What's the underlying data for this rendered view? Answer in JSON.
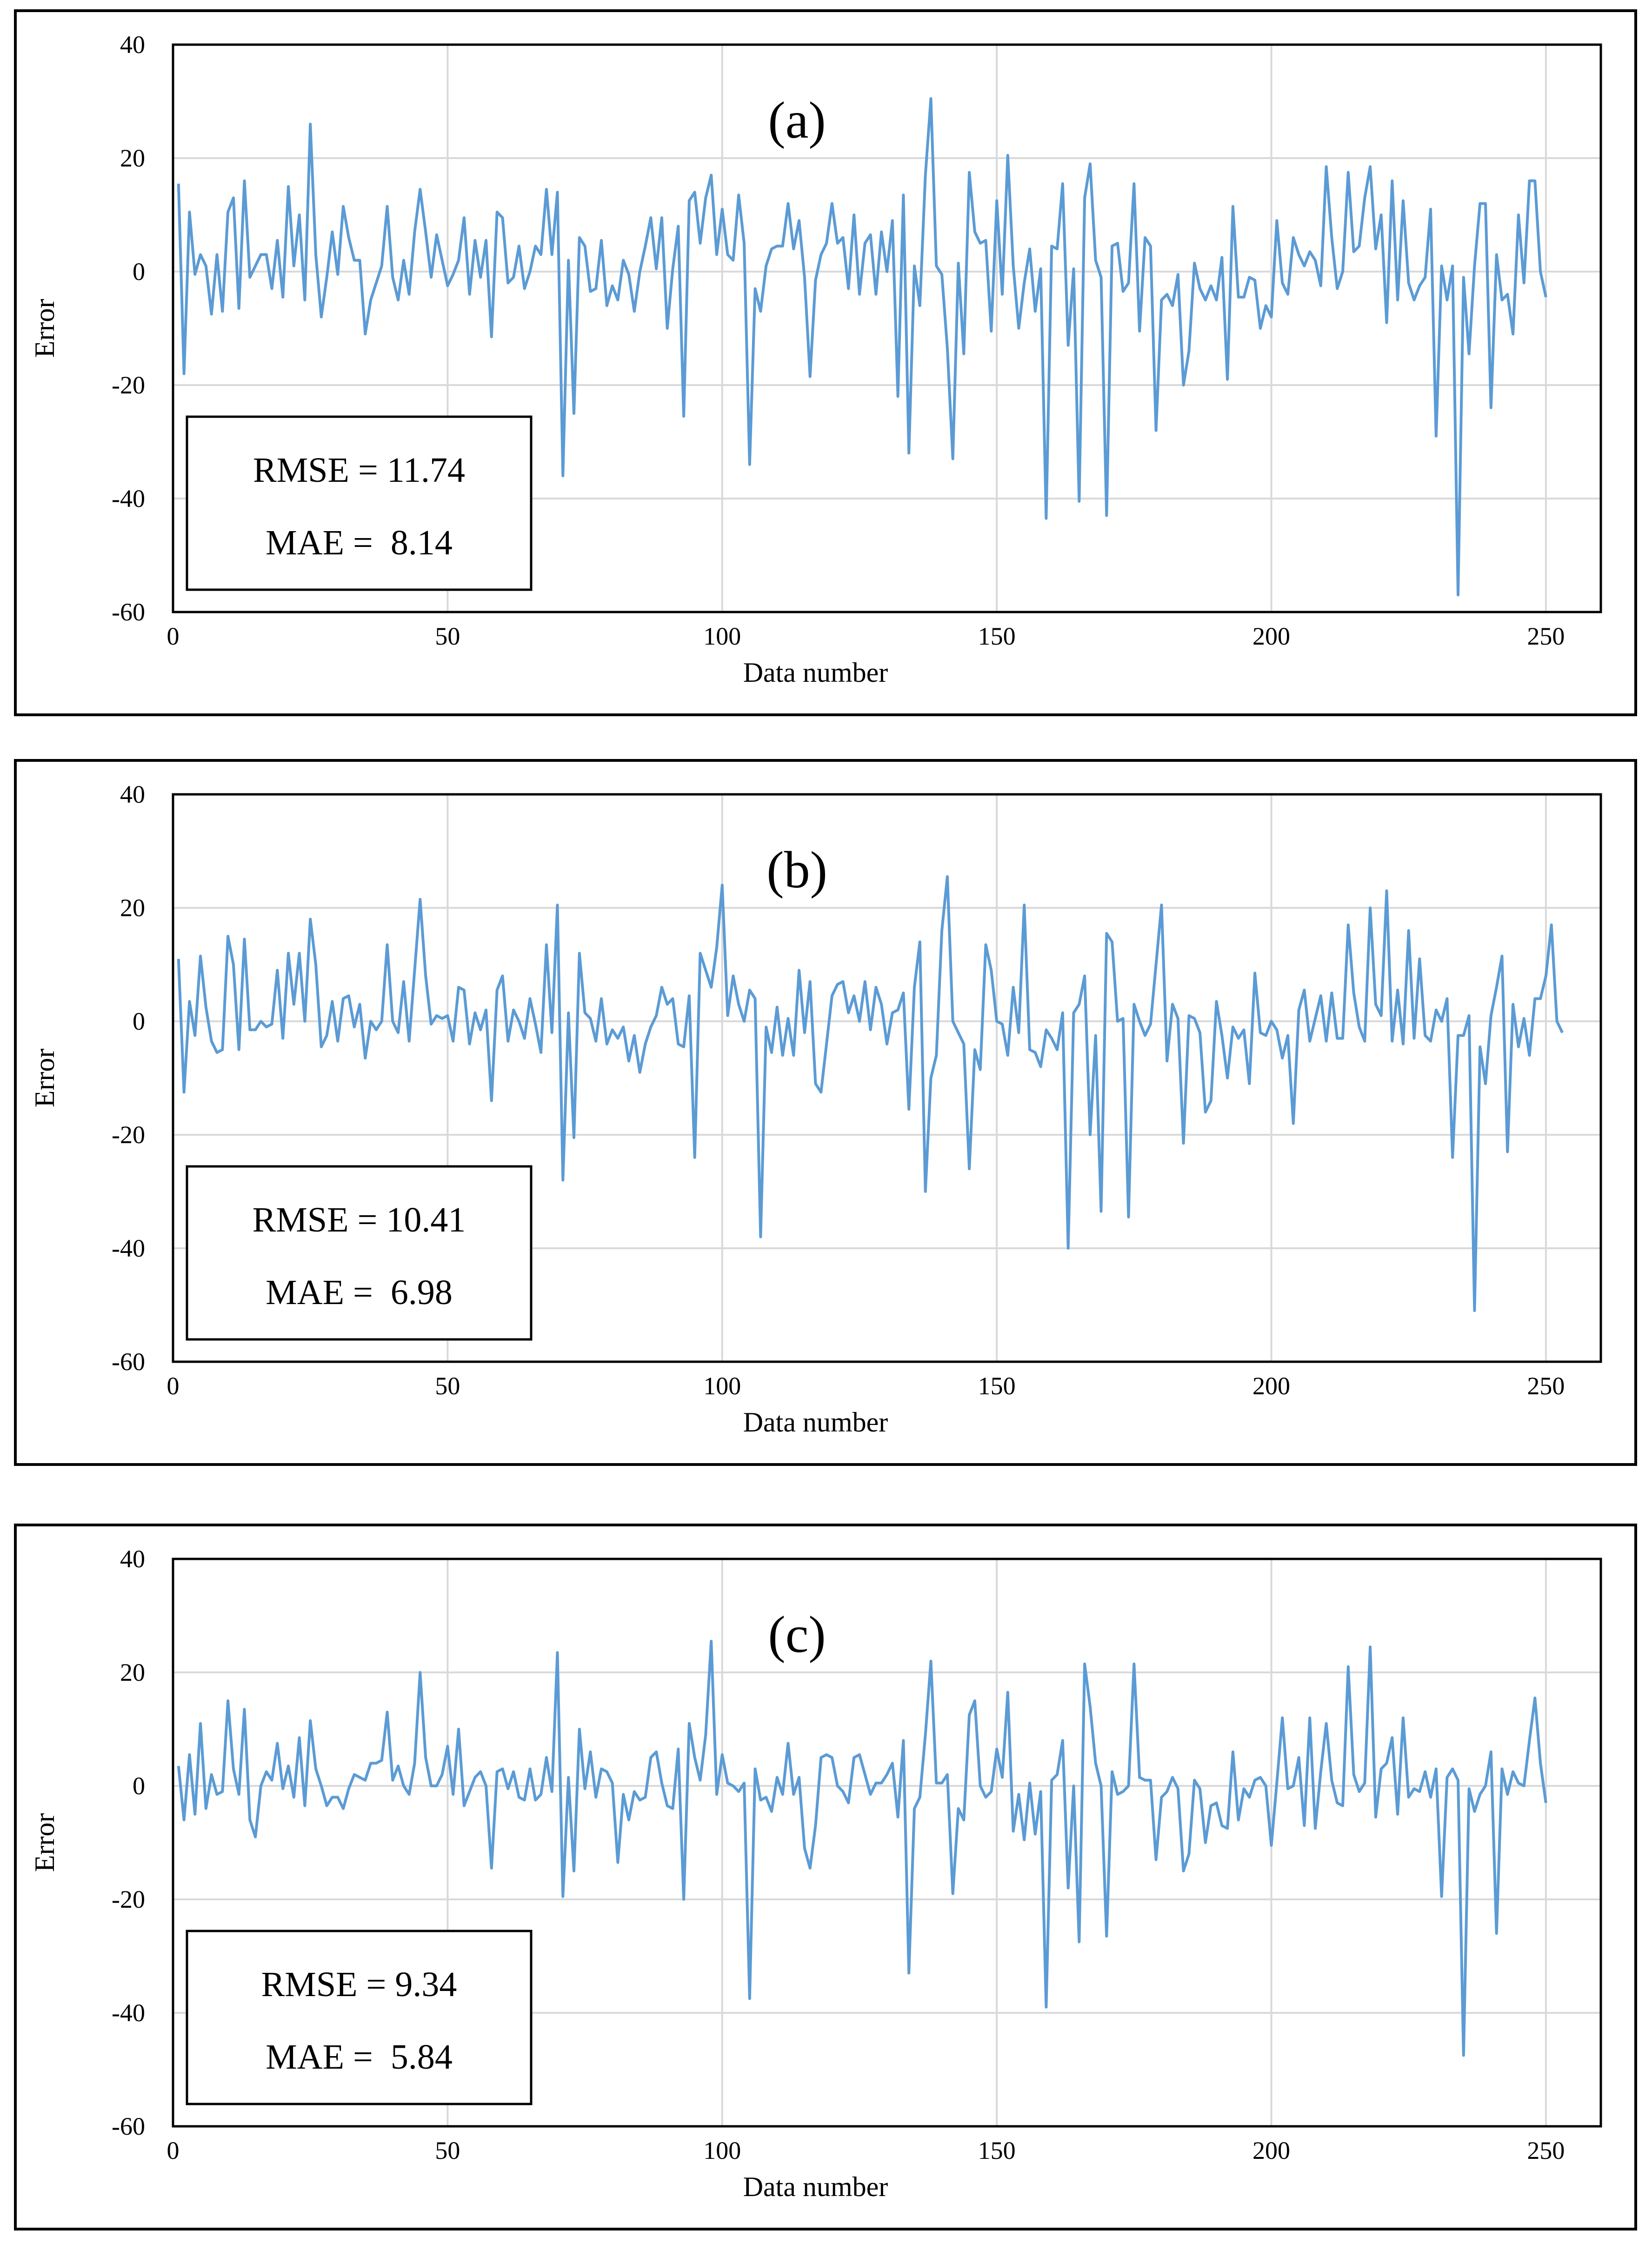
{
  "colors": {
    "series": "#5B9BD5",
    "grid": "#D9D9D9",
    "axis": "#000000"
  },
  "chart_data": [
    {
      "type": "line",
      "label": "(a)",
      "xlabel": "Data number",
      "ylabel": "Error",
      "xlim": [
        0,
        260
      ],
      "ylim": [
        -60,
        40
      ],
      "xticks": [
        "0",
        "50",
        "100",
        "150",
        "200",
        "250"
      ],
      "yticks": [
        "40",
        "20",
        "0",
        "-20",
        "-40",
        "-60"
      ],
      "grid": true,
      "stats": {
        "rmse": "RMSE = 11.74",
        "mae": "MAE =  8.14"
      },
      "series": [
        {
          "name": "Error",
          "x_start": 1,
          "values": [
            15.5,
            -18,
            10.5,
            -0.5,
            3,
            1,
            -7.5,
            3,
            -7,
            10.5,
            13,
            -6.5,
            16,
            -1,
            1,
            3,
            3,
            -3,
            5.5,
            -4.5,
            15,
            1,
            10,
            -5,
            26,
            3,
            -8,
            -1,
            7,
            -0.5,
            11.5,
            6,
            2,
            2,
            -11,
            -5,
            -2,
            1,
            11.5,
            -1,
            -5,
            2,
            -4,
            7,
            14.5,
            7,
            -1,
            6.5,
            2,
            -2.5,
            -0.5,
            2,
            9.5,
            -4,
            5.5,
            -1,
            5.5,
            -11.5,
            10.5,
            9.5,
            -2,
            -1,
            4.5,
            -3,
            0,
            4.5,
            3,
            14.5,
            3,
            14,
            -36,
            2,
            -25,
            6,
            4.5,
            -3.5,
            -3,
            5.5,
            -6,
            -2.5,
            -5,
            2,
            -0.5,
            -7,
            0,
            4.5,
            9.5,
            0.5,
            9.5,
            -10,
            0.5,
            8,
            -25.5,
            12.5,
            14,
            5,
            13,
            17,
            3,
            11,
            3,
            2,
            13.5,
            5,
            -34,
            -3,
            -7,
            1,
            4,
            4.5,
            4.5,
            12,
            4,
            9,
            -1,
            -18.5,
            -1.5,
            3,
            5,
            12,
            5,
            6,
            -3,
            10,
            -4,
            5,
            6.5,
            -4,
            7,
            0,
            9,
            -22,
            13.5,
            -32,
            1,
            -6,
            17,
            30.5,
            1,
            -0.5,
            -13.5,
            -33,
            1.5,
            -14.5,
            17.5,
            7,
            5,
            5.5,
            -10.5,
            12.5,
            -4,
            20.5,
            1,
            -10,
            -2,
            4,
            -7,
            0.5,
            -43.5,
            4.5,
            4,
            15.5,
            -13,
            0.5,
            -40.5,
            13,
            19,
            2,
            -1,
            -43,
            4.5,
            5,
            -3.5,
            -2,
            15.5,
            -10.5,
            6,
            4.5,
            -28,
            -5,
            -4,
            -6,
            -0.5,
            -20,
            -14,
            1.5,
            -3,
            -5,
            -2.5,
            -5,
            2.5,
            -19,
            11.5,
            -4.5,
            -4.5,
            -1,
            -1.5,
            -10,
            -6,
            -8,
            9,
            -2,
            -4,
            6,
            3,
            1,
            3.5,
            2,
            -2.5,
            18.5,
            6,
            -3,
            0,
            17.5,
            3.5,
            4.5,
            13,
            18.5,
            4,
            10,
            -9,
            16,
            -5,
            12.5,
            -2,
            -5,
            -2.5,
            -1,
            11,
            -29,
            1,
            -5,
            1,
            -57,
            -1,
            -14.5,
            1,
            12,
            12,
            -24,
            3,
            -5,
            -4,
            -11,
            10,
            -2,
            16,
            16,
            0,
            -4.5
          ]
        }
      ]
    },
    {
      "type": "line",
      "label": "(b)",
      "xlabel": "Data number",
      "ylabel": "Error",
      "xlim": [
        0,
        260
      ],
      "ylim": [
        -60,
        40
      ],
      "xticks": [
        "0",
        "50",
        "100",
        "150",
        "200",
        "250"
      ],
      "yticks": [
        "40",
        "20",
        "0",
        "-20",
        "-40",
        "-60"
      ],
      "grid": true,
      "stats": {
        "rmse": "RMSE = 10.41",
        "mae": "MAE =  6.98"
      },
      "series": [
        {
          "name": "Error",
          "x_start": 1,
          "values": [
            11,
            -12.5,
            3.5,
            -2.5,
            11.5,
            2.5,
            -3.5,
            -5.5,
            -5,
            15,
            10,
            -5,
            14.5,
            -1.5,
            -1.5,
            0,
            -1,
            -0.5,
            9,
            -3,
            12,
            3,
            12,
            0,
            18,
            10,
            -4.5,
            -2.5,
            3.5,
            -3.5,
            4,
            4.5,
            -1,
            3,
            -6.5,
            0,
            -1.5,
            0,
            13.5,
            0,
            -2,
            7,
            -3.5,
            9,
            21.5,
            8,
            -0.5,
            1,
            0.5,
            1,
            -3.5,
            6,
            5.5,
            -4,
            1.5,
            -1.5,
            2,
            -14,
            5.5,
            8,
            -3.5,
            2,
            0,
            -3,
            4,
            -0.5,
            -5.5,
            13.5,
            -2,
            20.5,
            -28,
            1.5,
            -20.5,
            12,
            1.5,
            0.5,
            -3.5,
            4,
            -4,
            -1.5,
            -3,
            -1,
            -7,
            -2.5,
            -9,
            -4,
            -1,
            1,
            6,
            3,
            4,
            -4,
            -4.5,
            4.5,
            -24,
            12,
            9,
            6,
            13,
            24,
            1,
            8,
            3,
            0,
            5.5,
            4,
            -38,
            -1,
            -5.5,
            2.5,
            -6,
            0.5,
            -6,
            9,
            -2,
            7,
            -11,
            -12.5,
            -4,
            4.5,
            6.5,
            7,
            1.5,
            4.5,
            0,
            7,
            -1.5,
            6,
            3,
            -4,
            1.5,
            2,
            5,
            -15.5,
            6,
            14,
            -30,
            -10,
            -6,
            16,
            25.5,
            0,
            -2,
            -4,
            -26,
            -5,
            -8.5,
            13.5,
            9,
            0,
            -0.5,
            -6,
            6,
            -2,
            20.5,
            -5,
            -5.5,
            -8,
            -1.5,
            -3,
            -5,
            1.5,
            -40,
            1.5,
            3,
            8,
            -20,
            -2.5,
            -33.5,
            15.5,
            14,
            0,
            0.5,
            -34.5,
            3,
            0,
            -2.5,
            -0.5,
            10,
            20.5,
            -7,
            3,
            0.5,
            -21.5,
            1,
            0.5,
            -2,
            -16,
            -14,
            3.5,
            -2.5,
            -10,
            -1,
            -3,
            -1.5,
            -11,
            8.5,
            -2,
            -2.5,
            0,
            -1.5,
            -6.5,
            -2.5,
            -18,
            2,
            5.5,
            -3.5,
            0.5,
            4.5,
            -3.5,
            5,
            -3,
            -3,
            17,
            5,
            -1,
            -3.5,
            20,
            3,
            1,
            23,
            -3.5,
            5.5,
            -4,
            16,
            -3,
            11,
            -2.5,
            -3.5,
            2,
            0,
            4,
            -24,
            -2.5,
            -2.5,
            1,
            -51,
            -4.5,
            -11,
            1,
            6,
            11.5,
            -23,
            3,
            -4.5,
            0.5,
            -6,
            4,
            4,
            8,
            17,
            0,
            -2
          ]
        }
      ]
    },
    {
      "type": "line",
      "label": "(c)",
      "xlabel": "Data number",
      "ylabel": "Error",
      "xlim": [
        0,
        260
      ],
      "ylim": [
        -60,
        40
      ],
      "xticks": [
        "0",
        "50",
        "100",
        "150",
        "200",
        "250"
      ],
      "yticks": [
        "40",
        "20",
        "0",
        "-20",
        "-40",
        "-60"
      ],
      "grid": true,
      "stats": {
        "rmse": "RMSE = 9.34",
        "mae": "MAE =  5.84"
      },
      "series": [
        {
          "name": "Error",
          "x_start": 1,
          "values": [
            3.5,
            -6,
            5.5,
            -5,
            11,
            -4,
            2,
            -1.5,
            -1,
            15,
            3,
            -1.5,
            13.5,
            -6,
            -9,
            0,
            2.5,
            1,
            7.5,
            -0.5,
            3.5,
            -2,
            8.5,
            -3.5,
            11.5,
            3,
            0,
            -3.5,
            -2,
            -2,
            -4,
            -0.5,
            2,
            1.5,
            1,
            4,
            4,
            4.5,
            13,
            1,
            3.5,
            0,
            -1.5,
            4,
            20,
            5,
            0,
            0,
            2,
            7,
            -1.5,
            10,
            -3.5,
            -1,
            1.5,
            2.5,
            0,
            -14.5,
            2.5,
            3,
            -0.5,
            2.5,
            -2,
            -2.5,
            3,
            -2.5,
            -1.5,
            5,
            -1,
            23.5,
            -19.5,
            1.5,
            -15,
            10,
            -0.5,
            6,
            -2,
            3,
            2.5,
            0.5,
            -13.5,
            -1.5,
            -6,
            -1,
            -2.5,
            -2,
            5,
            6,
            0.5,
            -3.5,
            -4,
            6.5,
            -20,
            11,
            5,
            1,
            9,
            25.5,
            -1.5,
            5.5,
            0.5,
            0,
            -1,
            0.5,
            -37.5,
            3,
            -2.5,
            -2,
            -4.5,
            1.5,
            -1.5,
            7.5,
            -1.5,
            1.5,
            -11,
            -14.5,
            -7,
            5,
            5.5,
            5,
            0,
            -1,
            -3,
            5,
            5.5,
            2,
            -1.5,
            0.5,
            0.5,
            2,
            4,
            -5.5,
            8,
            -33,
            -4,
            -2,
            9,
            22,
            0.5,
            0.5,
            2,
            -19,
            -4,
            -6,
            12.5,
            15,
            0,
            -2,
            -1,
            6.5,
            1.5,
            16.5,
            -8,
            -1.5,
            -9.5,
            0.5,
            -8.5,
            -1,
            -39,
            1,
            2,
            8,
            -18,
            0,
            -27.5,
            21.5,
            14,
            4,
            0,
            -26.5,
            2.5,
            -1.5,
            -1,
            0,
            21.5,
            1.5,
            1,
            1,
            -13,
            -2,
            -1,
            1.5,
            -0.5,
            -15,
            -12,
            1,
            -0.5,
            -10,
            -3.5,
            -3,
            -7,
            -7.5,
            6,
            -6,
            -0.5,
            -2,
            1,
            1.5,
            0,
            -10.5,
            0.5,
            12,
            -0.5,
            0,
            5,
            -7,
            12,
            -7.5,
            2.5,
            11,
            1,
            -3,
            -3.5,
            21,
            2,
            -1,
            0.5,
            24.5,
            -5.5,
            3,
            4,
            8.5,
            -5,
            12,
            -2,
            -0.5,
            -1,
            2.5,
            -2,
            3,
            -19.5,
            1.5,
            3,
            1,
            -47.5,
            -0.5,
            -4.5,
            -1.5,
            0,
            6,
            -26,
            3,
            -1.5,
            2.5,
            0.5,
            0,
            8,
            15.5,
            4,
            -3
          ]
        }
      ]
    }
  ]
}
